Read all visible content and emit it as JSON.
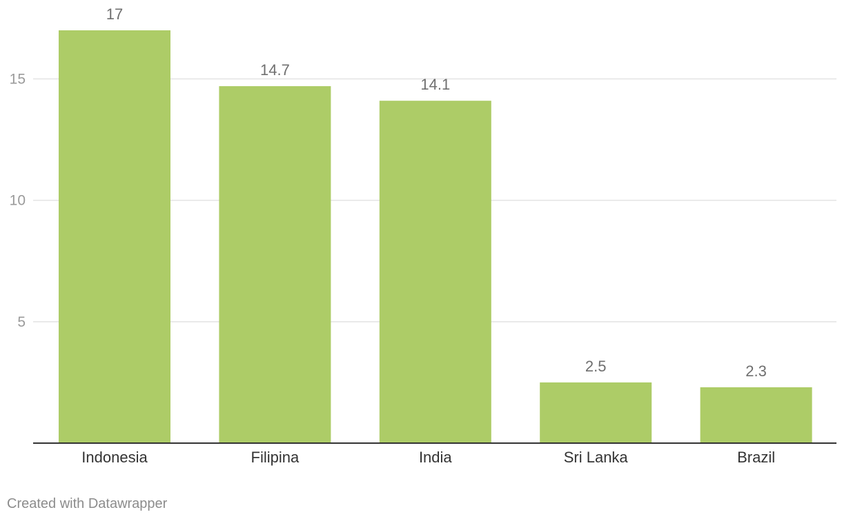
{
  "chart_data": {
    "type": "bar",
    "categories": [
      "Indonesia",
      "Filipina",
      "India",
      "Sri Lanka",
      "Brazil"
    ],
    "values": [
      17,
      14.7,
      14.1,
      2.5,
      2.3
    ],
    "value_labels": [
      "17",
      "14.7",
      "14.1",
      "2.5",
      "2.3"
    ],
    "title": "",
    "xlabel": "",
    "ylabel": "",
    "ylim": [
      0,
      17
    ],
    "yticks": [
      5,
      10,
      15
    ],
    "ytick_labels": [
      "5",
      "10",
      "15"
    ],
    "grid": true,
    "bar_color": "#adcc67"
  },
  "footer": {
    "credit": "Created with Datawrapper"
  }
}
